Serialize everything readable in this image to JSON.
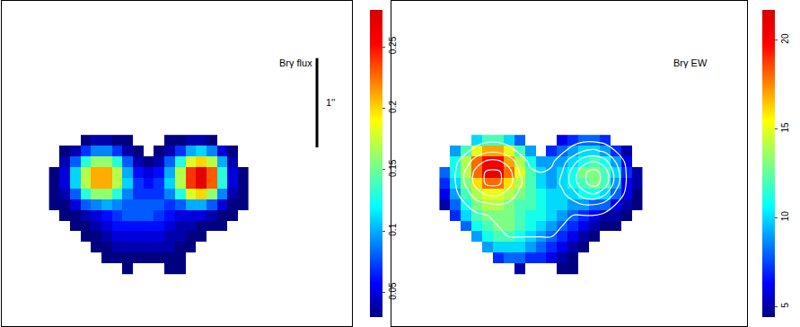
{
  "chart_data": [
    {
      "type": "heatmap",
      "title": "Brγ flux",
      "tick_labels": false,
      "xlim": [
        0,
        4.0
      ],
      "ylim": [
        0,
        3.64
      ],
      "x": [
        0.6,
        0.72,
        0.84,
        0.96,
        1.08,
        1.2,
        1.32,
        1.44,
        1.56,
        1.68,
        1.8,
        1.92,
        2.04,
        2.16,
        2.28,
        2.4,
        2.52,
        2.64,
        2.76
      ],
      "y": [
        2.08,
        1.96,
        1.84,
        1.72,
        1.6,
        1.48,
        1.36,
        1.24,
        1.12,
        1.0,
        0.88,
        0.76,
        0.64
      ],
      "zlim": [
        0.03,
        0.28
      ],
      "zticks": [
        0.05,
        0.1,
        0.15,
        0.2,
        0.25
      ],
      "scale_bar": {
        "label": "1''",
        "length": 1
      },
      "z": [
        [
          null,
          null,
          null,
          0.03,
          0.04,
          0.04,
          0.03,
          0.02,
          null,
          null,
          null,
          0.02,
          0.03,
          0.04,
          0.04,
          0.03,
          null,
          null,
          null
        ],
        [
          null,
          0.02,
          0.04,
          0.07,
          0.09,
          0.09,
          0.07,
          0.04,
          0.02,
          null,
          0.02,
          0.04,
          0.07,
          0.1,
          0.11,
          0.09,
          0.05,
          0.02,
          null
        ],
        [
          null,
          0.04,
          0.08,
          0.13,
          0.16,
          0.16,
          0.13,
          0.08,
          0.04,
          0.03,
          0.04,
          0.08,
          0.13,
          0.18,
          0.2,
          0.17,
          0.1,
          0.04,
          null
        ],
        [
          0.02,
          0.05,
          0.11,
          0.17,
          0.21,
          0.21,
          0.17,
          0.1,
          0.06,
          0.05,
          0.06,
          0.1,
          0.17,
          0.24,
          0.27,
          0.23,
          0.13,
          0.05,
          0.02
        ],
        [
          0.02,
          0.05,
          0.11,
          0.17,
          0.21,
          0.21,
          0.17,
          0.11,
          0.07,
          0.06,
          0.07,
          0.11,
          0.17,
          0.24,
          0.27,
          0.23,
          0.13,
          0.05,
          0.02
        ],
        [
          0.02,
          0.04,
          0.08,
          0.13,
          0.16,
          0.16,
          0.13,
          0.09,
          0.07,
          0.07,
          0.07,
          0.09,
          0.13,
          0.18,
          0.2,
          0.16,
          0.09,
          0.04,
          0.02
        ],
        [
          0.01,
          0.03,
          0.05,
          0.08,
          0.09,
          0.1,
          0.09,
          0.08,
          0.08,
          0.08,
          0.08,
          0.07,
          0.08,
          0.1,
          0.1,
          0.08,
          0.05,
          0.03,
          0.01
        ],
        [
          null,
          0.02,
          0.03,
          0.04,
          0.05,
          0.06,
          0.07,
          0.08,
          0.08,
          0.08,
          0.07,
          0.06,
          0.05,
          0.05,
          0.05,
          0.04,
          0.03,
          0.02,
          null
        ],
        [
          null,
          null,
          0.02,
          0.03,
          0.04,
          0.05,
          0.06,
          0.06,
          0.06,
          0.06,
          0.06,
          0.05,
          0.04,
          0.04,
          0.03,
          0.02,
          0.02,
          null,
          null
        ],
        [
          null,
          null,
          null,
          0.02,
          0.03,
          0.04,
          0.05,
          0.05,
          0.05,
          0.05,
          0.05,
          0.04,
          0.04,
          0.03,
          0.02,
          null,
          null,
          null,
          null
        ],
        [
          null,
          null,
          null,
          null,
          0.02,
          0.03,
          0.04,
          0.04,
          0.04,
          0.04,
          0.04,
          0.04,
          0.03,
          0.02,
          null,
          null,
          null,
          null,
          null
        ],
        [
          null,
          null,
          null,
          null,
          null,
          0.02,
          0.03,
          0.03,
          0.03,
          0.03,
          0.03,
          0.03,
          0.02,
          null,
          null,
          null,
          null,
          null,
          null
        ],
        [
          null,
          null,
          null,
          null,
          null,
          null,
          null,
          0.02,
          null,
          null,
          null,
          0.02,
          0.02,
          null,
          null,
          null,
          null,
          null,
          null
        ]
      ]
    },
    {
      "type": "heatmap",
      "title": "Brγ EW",
      "tick_labels": false,
      "xlim": [
        0,
        4.0
      ],
      "ylim": [
        0,
        3.64
      ],
      "x": [
        0.6,
        0.72,
        0.84,
        0.96,
        1.08,
        1.2,
        1.32,
        1.44,
        1.56,
        1.68,
        1.8,
        1.92,
        2.04,
        2.16,
        2.28,
        2.4,
        2.52,
        2.64,
        2.76
      ],
      "y": [
        2.08,
        1.96,
        1.84,
        1.72,
        1.6,
        1.48,
        1.36,
        1.24,
        1.12,
        1.0,
        0.88,
        0.76,
        0.64
      ],
      "zlim": [
        4.4,
        21.7
      ],
      "zticks": [
        5,
        10,
        15,
        20
      ],
      "contour_levels": [
        0.05,
        0.1,
        0.15,
        0.2,
        0.25
      ],
      "z": [
        [
          null,
          null,
          null,
          10,
          12,
          12,
          10,
          8,
          null,
          null,
          null,
          6,
          7,
          8,
          8,
          7,
          null,
          null,
          null
        ],
        [
          null,
          9,
          12,
          15,
          17,
          17,
          15,
          12,
          9,
          null,
          7,
          8,
          9,
          10,
          10,
          9,
          7,
          5,
          null
        ],
        [
          null,
          11,
          14,
          18,
          20,
          20,
          17,
          14,
          11,
          9,
          9,
          9,
          10,
          11,
          12,
          11,
          9,
          6,
          null
        ],
        [
          8,
          11,
          14,
          18,
          21,
          21,
          18,
          15,
          12,
          10,
          9,
          10,
          11,
          13,
          13,
          12,
          10,
          7,
          5
        ],
        [
          7,
          10,
          13,
          16,
          18,
          18,
          16,
          14,
          12,
          10,
          9,
          10,
          11,
          12,
          13,
          12,
          9,
          6,
          5
        ],
        [
          6,
          9,
          12,
          14,
          15,
          15,
          14,
          13,
          12,
          11,
          10,
          10,
          10,
          11,
          11,
          10,
          8,
          6,
          4
        ],
        [
          5,
          8,
          11,
          13,
          14,
          14,
          13,
          12,
          12,
          11,
          10,
          10,
          9,
          9,
          8,
          8,
          6,
          5,
          4
        ],
        [
          null,
          7,
          10,
          12,
          13,
          13,
          13,
          12,
          11,
          11,
          10,
          9,
          8,
          7,
          6,
          5,
          5,
          4,
          null
        ],
        [
          null,
          null,
          8,
          11,
          12,
          13,
          13,
          12,
          11,
          10,
          9,
          8,
          7,
          6,
          5,
          4,
          4,
          null,
          null
        ],
        [
          null,
          null,
          null,
          9,
          11,
          12,
          12,
          11,
          10,
          9,
          8,
          7,
          6,
          5,
          4,
          null,
          null,
          null,
          null
        ],
        [
          null,
          null,
          null,
          null,
          9,
          10,
          10,
          10,
          9,
          8,
          7,
          6,
          5,
          4,
          null,
          null,
          null,
          null,
          null
        ],
        [
          null,
          null,
          null,
          null,
          null,
          7,
          8,
          8,
          7,
          7,
          6,
          5,
          4,
          null,
          null,
          null,
          null,
          null,
          null
        ],
        [
          null,
          null,
          null,
          null,
          null,
          null,
          null,
          5,
          null,
          null,
          null,
          4,
          4,
          null,
          null,
          null,
          null,
          null,
          null
        ]
      ]
    }
  ]
}
